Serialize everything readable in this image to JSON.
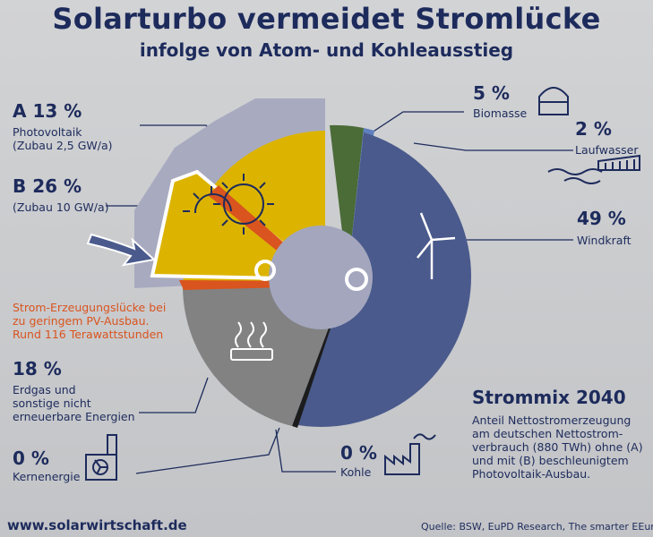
{
  "title": "Solarturbo vermeidet Stromlücke",
  "subtitle": "infolge von Atom- und Kohleausstieg",
  "chart_data": {
    "type": "pie",
    "title": "Strommix 2040",
    "description": "Anteil Nettostromerzeugung am deutschen Nettostrom-verbrauch (880 TWh) ohne (A) und mit (B) beschleunigtem Photovoltaik-Ausbau.",
    "slices": [
      {
        "pct": "5 %",
        "value": 5,
        "label": "Biomasse",
        "color": "#4b6b37"
      },
      {
        "pct": "2 %",
        "value": 2,
        "label": "Laufwasser",
        "color": "#5f7fbf"
      },
      {
        "pct": "49 %",
        "value": 49,
        "label": "Windkraft",
        "color": "#4a5a8c"
      },
      {
        "pct": "0 %",
        "value": 0,
        "label": "Kohle",
        "color": "#1c1c1c"
      },
      {
        "pct": "18 %",
        "value": 18,
        "label": "Erdgas und sonstige nicht erneuerbare Energien",
        "color": "#828283"
      },
      {
        "pct": "0 %",
        "value": 0,
        "label": "Kernenergie",
        "color": "#1c1c1c"
      },
      {
        "pct": "A 13 %",
        "value": 13,
        "label": "Photovoltaik (Zubau 2,5 GW/a)",
        "color": "#dcb400"
      },
      {
        "pct": "B 26 %",
        "value": 26,
        "label": "(Zubau 10 GW/a)",
        "color": "#a7a9be"
      }
    ],
    "gap_note": "Strom-Erzeugungslücke bei zu geringem PV-Ausbau. Rund 116 Terawattstunden"
  },
  "labels": {
    "a_pct": "A 13 %",
    "a_line1": "Photovoltaik",
    "a_line2": "(Zubau 2,5 GW/a)",
    "b_pct": "B 26 %",
    "b_line1": "(Zubau 10 GW/a)",
    "bio_pct": "5 %",
    "bio": "Biomasse",
    "water_pct": "2 %",
    "water": "Laufwasser",
    "wind_pct": "49 %",
    "wind": "Windkraft",
    "gas_pct": "18 %",
    "gas_line1": "Erdgas und",
    "gas_line2": "sonstige nicht",
    "gas_line3": "erneuerbare Energien",
    "nuc_pct": "0 %",
    "nuc": "Kernenergie",
    "coal_pct": "0 %",
    "coal": "Kohle",
    "gap_line1": "Strom-Erzeugungslücke bei",
    "gap_line2": "zu geringem PV-Ausbau.",
    "gap_line3": "Rund 116 Terawattstunden",
    "mix_title": "Strommix 2040",
    "mix_line1": "Anteil Nettostromerzeugung",
    "mix_line2": "am deutschen Nettostrom-",
    "mix_line3": "verbrauch (880 TWh) ohne (A)",
    "mix_line4": "und mit (B) beschleunigtem",
    "mix_line5": "Photovoltaik-Ausbau."
  },
  "footer": {
    "url": "www.solarwirtschaft.de",
    "source": "Quelle: BSW, EuPD Research, The smarter EEurope"
  },
  "icons": [
    "biomass-icon",
    "hydro-icon",
    "wind-turbine-icon",
    "gas-flame-icon",
    "nuclear-plant-icon",
    "coal-factory-icon",
    "sun-icon",
    "arrow-icon"
  ]
}
